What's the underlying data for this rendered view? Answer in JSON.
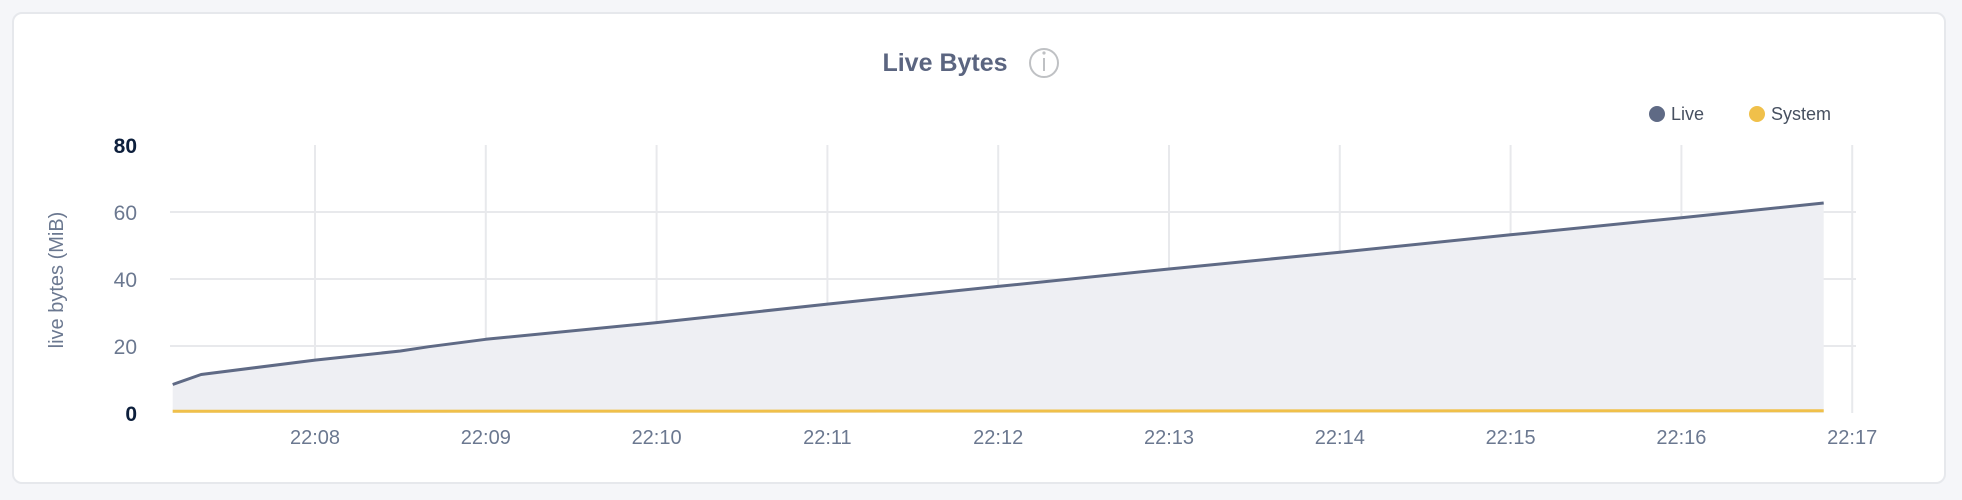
{
  "chart_data": {
    "type": "area",
    "title": "Live Bytes",
    "info_icon": "info-icon",
    "ylabel": "live bytes (MiB)",
    "xlabel": "",
    "ylim": [
      0,
      80
    ],
    "yticks": [
      "0",
      "20",
      "40",
      "60",
      "80"
    ],
    "xticks": [
      "22:08",
      "22:09",
      "22:10",
      "22:11",
      "22:12",
      "22:13",
      "22:14",
      "22:15",
      "22:16",
      "22:17"
    ],
    "grid": true,
    "legend_position": "top-right",
    "series": [
      {
        "name": "Live",
        "color": "#5f6a85",
        "fill": "#eeeff3",
        "x": [
          "22:07:10",
          "22:07:20",
          "22:08:00",
          "22:08:30",
          "22:08:40",
          "22:09:00",
          "22:10:00",
          "22:11:00",
          "22:12:00",
          "22:13:00",
          "22:14:00",
          "22:15:00",
          "22:16:00",
          "22:16:50"
        ],
        "y": [
          8.5,
          11.5,
          15.8,
          18.5,
          19.8,
          22,
          27,
          32.5,
          37.8,
          43,
          48,
          53.2,
          58.3,
          62.7
        ]
      },
      {
        "name": "System",
        "color": "#f0c04a",
        "x": [
          "22:07:10",
          "22:16:50"
        ],
        "y": [
          0.5,
          0.7
        ]
      }
    ]
  }
}
